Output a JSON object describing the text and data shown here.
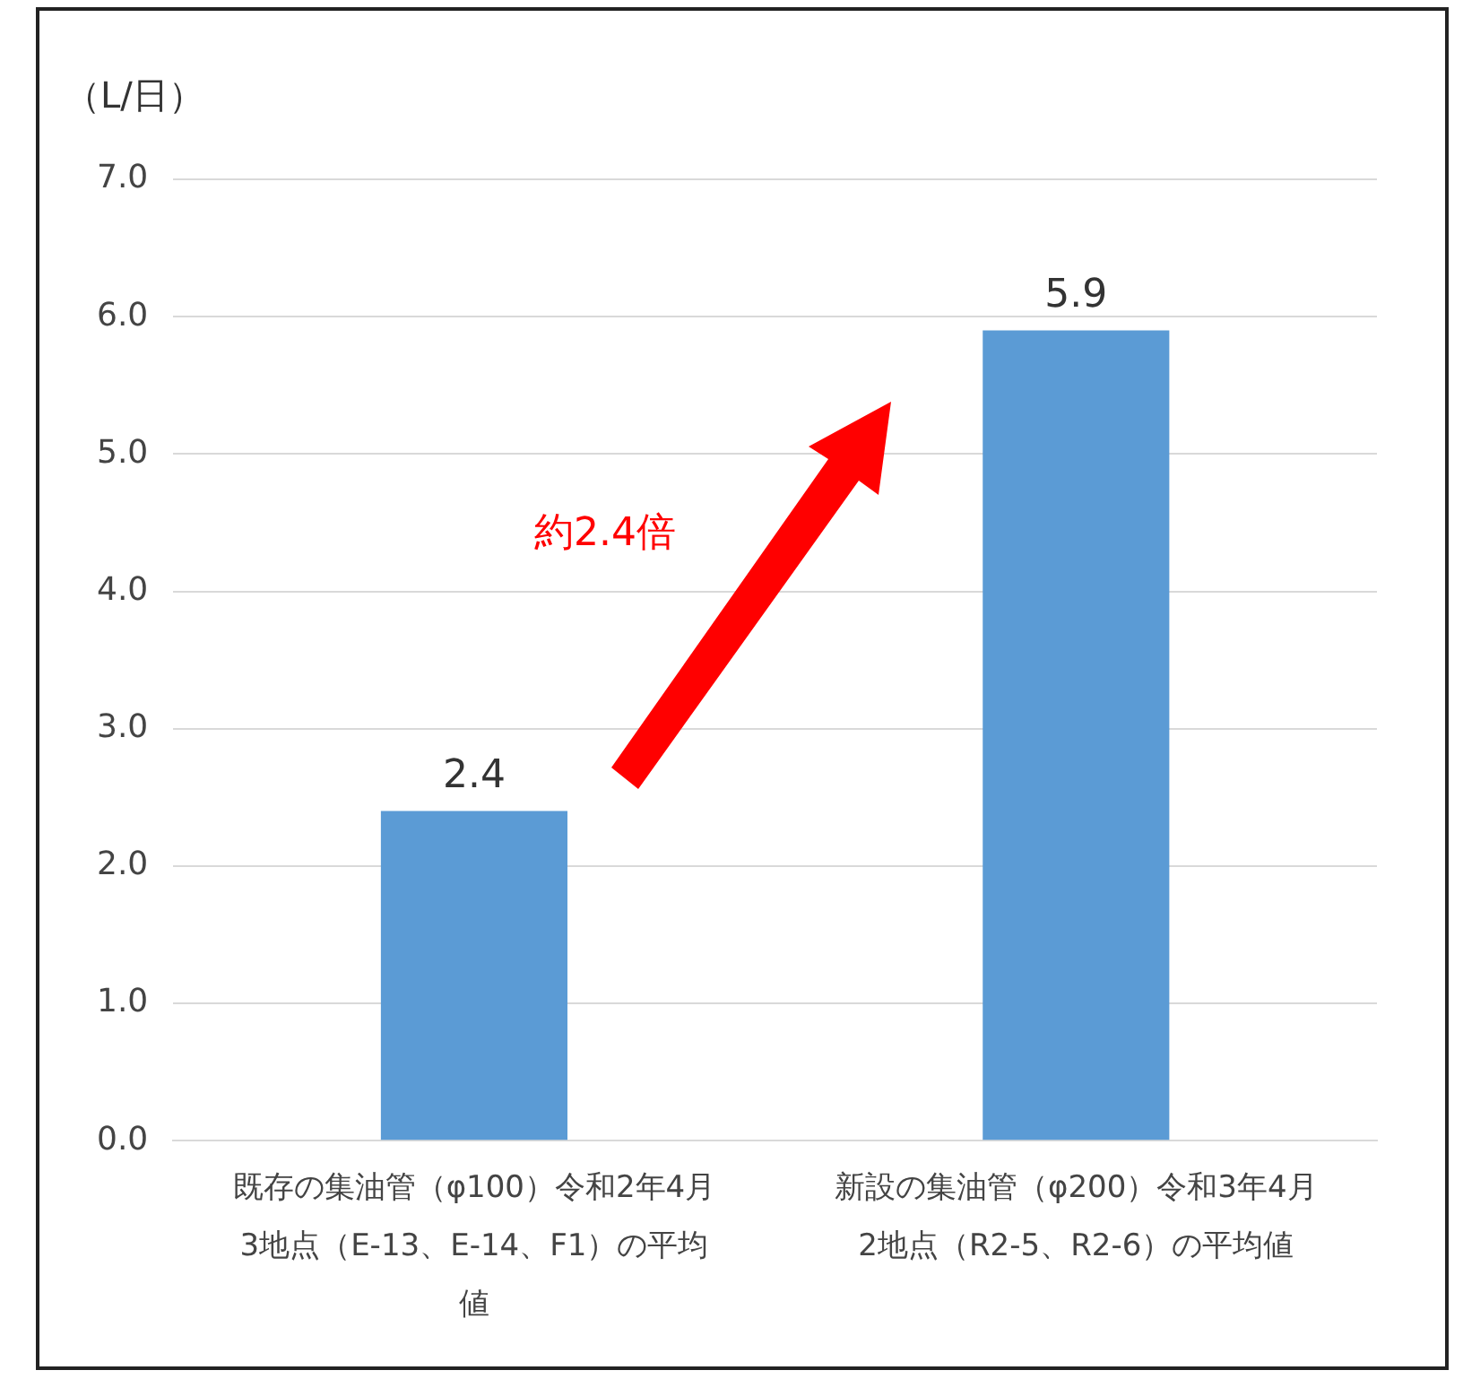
{
  "chart_data": {
    "type": "bar",
    "categories": [
      "既存の集油管（φ100）令和2年4月3地点（E-13、E-14、F1）の平均値",
      "新設の集油管（φ200）令和3年4月2地点（R2-5、R2-6）の平均値"
    ],
    "values": [
      2.4,
      5.9
    ],
    "color": "#5b9bd5",
    "ylabel": "（L/日）",
    "ylim": [
      0,
      7
    ],
    "yticks": [
      {
        "value": 0,
        "label": "0.0"
      },
      {
        "value": 1,
        "label": "1.0"
      },
      {
        "value": 2,
        "label": "2.0"
      },
      {
        "value": 3,
        "label": "3.0"
      },
      {
        "value": 4,
        "label": "4.0"
      },
      {
        "value": 5,
        "label": "5.0"
      },
      {
        "value": 6,
        "label": "6.0"
      },
      {
        "value": 7,
        "label": "7.0"
      }
    ],
    "grid": "y",
    "data_labels": true,
    "annotations": [
      "約2.4倍"
    ]
  }
}
